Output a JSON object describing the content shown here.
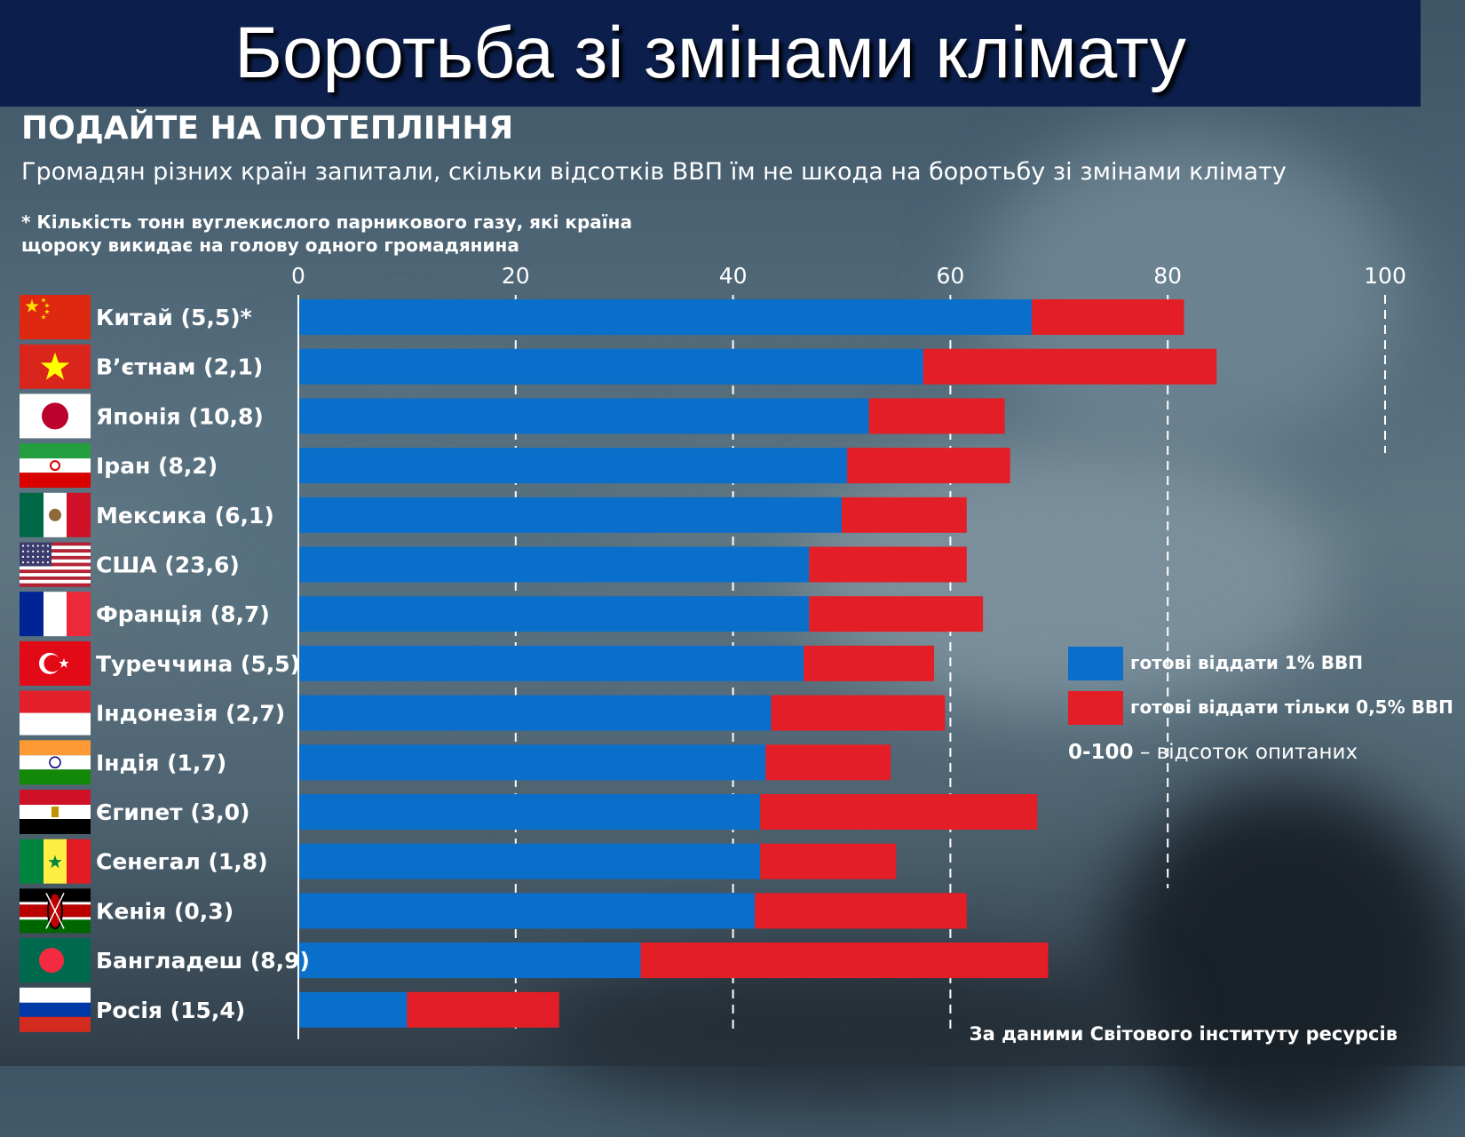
{
  "slide": {
    "title": "Боротьба зі змінами клімату"
  },
  "chart_data": {
    "type": "bar",
    "orientation": "horizontal",
    "stacked": true,
    "title": "ПОДАЙТЕ НА ПОТЕПЛІННЯ",
    "subtitle": "Громадян різних країн запитали, скільки відсотків ВВП їм не шкода на боротьбу зі змінами клімату",
    "footnote_line1": "* Кількість тонн вуглекислого парникового газу, які країна",
    "footnote_line2": "щороку викидає на голову одного громадянина",
    "source": "За даними Світового інституту ресурсів",
    "xlim": [
      0,
      100
    ],
    "x_ticks": [
      "0",
      "20",
      "40",
      "60",
      "80",
      "100"
    ],
    "grid": "vertical dashed",
    "legend_position": "right-middle",
    "categories": [
      "Китай (5,5)*",
      "В’єтнам (2,1)",
      "Японія (10,8)",
      "Іран (8,2)",
      "Мексика (6,1)",
      "США (23,6)",
      "Франція (8,7)",
      "Туреччина (5,5)",
      "Індонезія (2,7)",
      "Індія (1,7)",
      "Єгипет (3,0)",
      "Сенегал (1,8)",
      "Кенія (0,3)",
      "Бангладеш (8,9)",
      "Росія (15,4)"
    ],
    "series": [
      {
        "name": "готові віддати 1% ВВП",
        "color": "#0a6fcb",
        "values": [
          67.5,
          57.5,
          52.5,
          50.5,
          50,
          47,
          47,
          46.5,
          43.5,
          43,
          42.5,
          42.5,
          42,
          31.5,
          10
        ]
      },
      {
        "name": "готові віддати тільки 0,5% ВВП",
        "color": "#e41e26",
        "values": [
          14,
          27,
          12.5,
          15,
          11.5,
          14.5,
          16,
          12,
          16,
          11.5,
          25.5,
          12.5,
          19.5,
          37.5,
          14
        ]
      }
    ],
    "legend_note_bold": "0-100",
    "legend_note_text": " – відсоток опитаних",
    "flags": [
      "china-flag-icon",
      "vietnam-flag-icon",
      "japan-flag-icon",
      "iran-flag-icon",
      "mexico-flag-icon",
      "usa-flag-icon",
      "france-flag-icon",
      "turkey-flag-icon",
      "indonesia-flag-icon",
      "india-flag-icon",
      "egypt-flag-icon",
      "senegal-flag-icon",
      "kenya-flag-icon",
      "bangladesh-flag-icon",
      "russia-flag-icon"
    ]
  }
}
